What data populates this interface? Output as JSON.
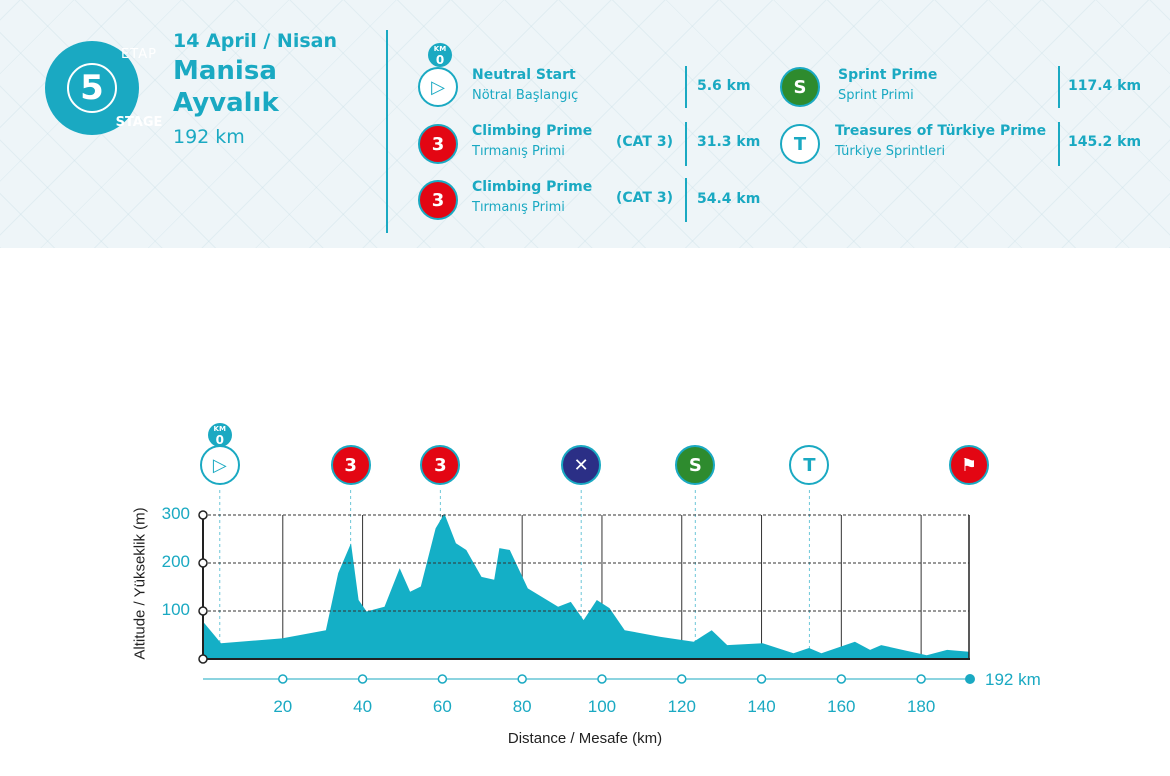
{
  "stage": {
    "etap_label": "ETAP",
    "number": "5",
    "stage_label": "STAGE",
    "date": "14 April / Nisan",
    "start": "Manisa",
    "finish": "Ayvalık",
    "distance": "192 km"
  },
  "points": [
    {
      "title": "Neutral Start",
      "subtitle": "Nötral Başlangıç",
      "cat": "",
      "km": "5.6 km",
      "icon": "play-icon",
      "badge": "KM",
      "badge_num": "0"
    },
    {
      "title": "Climbing Prime",
      "subtitle": "Tırmanış Primi",
      "cat": "(CAT 3)",
      "km": "31.3 km",
      "icon": "mountain-cat3-icon",
      "glyph": "3"
    },
    {
      "title": "Climbing Prime",
      "subtitle": "Tırmanış Primi",
      "cat": "(CAT 3)",
      "km": "54.4 km",
      "icon": "mountain-cat3-icon",
      "glyph": "3"
    },
    {
      "title": "Sprint Prime",
      "subtitle": "Sprint Primi",
      "cat": "",
      "km": "117.4 km",
      "icon": "sprint-icon",
      "glyph": "S"
    },
    {
      "title": "Treasures of Türkiye Prime",
      "subtitle": "Türkiye Sprintleri",
      "cat": "",
      "km": "145.2 km",
      "icon": "treasures-cyclist-icon",
      "glyph": "T"
    }
  ],
  "colors": {
    "accent": "#1aa9c2",
    "fill": "#14afc6",
    "red": "#e30613",
    "green": "#2e8b2e",
    "navy": "#2b2f86"
  },
  "chart_data": {
    "type": "area",
    "xlabel": "Distance / Mesafe  (km)",
    "ylabel": "Altitude / Yükseklik (m)",
    "xlim": [
      0,
      192
    ],
    "ylim": [
      0,
      300
    ],
    "xticks": [
      20,
      40,
      60,
      80,
      100,
      120,
      140,
      160,
      180
    ],
    "yticks": [
      100,
      200,
      300
    ],
    "end_label": "192 km",
    "grid": true,
    "profile": [
      [
        0,
        78
      ],
      [
        4.5,
        33
      ],
      [
        19.8,
        43
      ],
      [
        30.8,
        60
      ],
      [
        33.9,
        179
      ],
      [
        37.1,
        241
      ],
      [
        39,
        123
      ],
      [
        41,
        99
      ],
      [
        45.5,
        109
      ],
      [
        49.3,
        189
      ],
      [
        51.9,
        140
      ],
      [
        54.6,
        151
      ],
      [
        58.3,
        272
      ],
      [
        60.5,
        303
      ],
      [
        63.4,
        241
      ],
      [
        66,
        227
      ],
      [
        69.8,
        171
      ],
      [
        73,
        165
      ],
      [
        74.3,
        231
      ],
      [
        76.9,
        227
      ],
      [
        81.4,
        147
      ],
      [
        89,
        109
      ],
      [
        92.2,
        119
      ],
      [
        95.4,
        81
      ],
      [
        98.7,
        123
      ],
      [
        101.9,
        106
      ],
      [
        105.7,
        60
      ],
      [
        114.7,
        46
      ],
      [
        123,
        36
      ],
      [
        127.5,
        60
      ],
      [
        131.4,
        29
      ],
      [
        140.3,
        33
      ],
      [
        148,
        12
      ],
      [
        151.9,
        23
      ],
      [
        155,
        12
      ],
      [
        163.4,
        36
      ],
      [
        167.2,
        19
      ],
      [
        170,
        29
      ],
      [
        181.4,
        8
      ],
      [
        186.5,
        19
      ],
      [
        192,
        15
      ]
    ],
    "markers": [
      {
        "km": 4.2,
        "icon": "neutral-start-icon",
        "glyph": "▷",
        "style": "plain",
        "badge": "KM",
        "badge_num": "0"
      },
      {
        "km": 37,
        "icon": "climb-cat3-icon",
        "glyph": "3",
        "style": "red"
      },
      {
        "km": 59.5,
        "icon": "climb-cat3-icon",
        "glyph": "3",
        "style": "red"
      },
      {
        "km": 94.8,
        "icon": "feed-zone-icon",
        "glyph": "✕",
        "style": "navy"
      },
      {
        "km": 123.4,
        "icon": "sprint-icon",
        "glyph": "S",
        "style": "green"
      },
      {
        "km": 152,
        "icon": "treasures-cyclist-icon",
        "glyph": "T",
        "style": "plain"
      },
      {
        "km": 192,
        "icon": "finish-flag-icon",
        "glyph": "⚑",
        "style": "flag"
      }
    ]
  }
}
